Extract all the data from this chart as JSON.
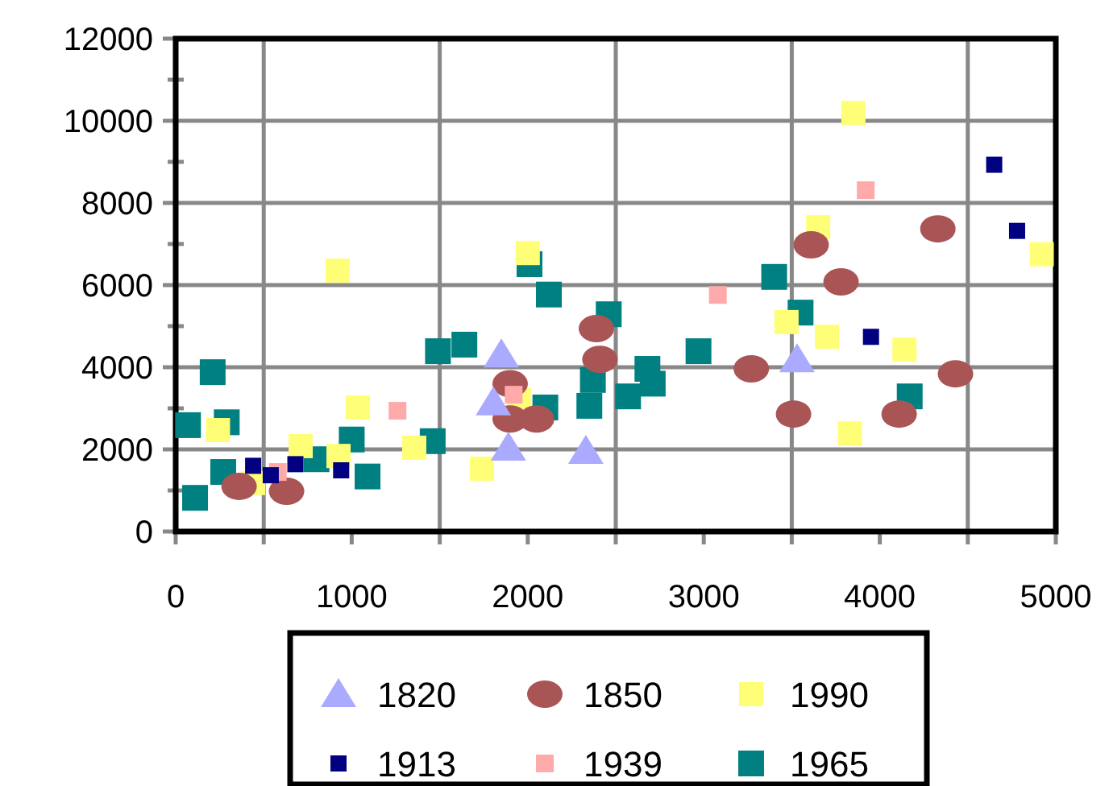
{
  "chart_data": {
    "type": "scatter",
    "xlim": [
      0,
      5000
    ],
    "ylim": [
      0,
      12000
    ],
    "xticks": [
      0,
      {
        "value": 500,
        "label": null
      },
      1000,
      {
        "value": 1500,
        "label": null
      },
      2000,
      {
        "value": 2500,
        "label": null
      },
      3000,
      {
        "value": 3500,
        "label": null
      },
      4000,
      {
        "value": 4500,
        "label": null
      },
      5000
    ],
    "yticks": [
      0,
      2000,
      4000,
      6000,
      8000,
      10000,
      12000
    ],
    "grid": true,
    "legend": "bottom",
    "series": [
      {
        "name": "1820",
        "color": "#aaaaff",
        "marker": "triangle",
        "x": [
          1850,
          1805,
          1890,
          2330,
          3530
        ],
        "values": [
          4310,
          3140,
          2040,
          1960,
          4190
        ]
      },
      {
        "name": "1850",
        "color": "#aa5555",
        "marker": "circle",
        "x": [
          360,
          630,
          1900,
          1900,
          2050,
          2390,
          2410,
          3610,
          3780,
          4330,
          3270,
          3510,
          4110,
          4430
        ],
        "values": [
          1100,
          980,
          3600,
          2740,
          2740,
          4940,
          4190,
          6980,
          6080,
          7370,
          3960,
          2860,
          2860,
          3840
        ]
      },
      {
        "name": "1990",
        "color": "#ffff77",
        "marker": "square",
        "x": [
          240,
          440,
          710,
          925,
          920,
          1035,
          1355,
          1740,
          2000,
          1950,
          3850,
          3650,
          3470,
          3700,
          4140,
          3830,
          4920
        ],
        "values": [
          2470,
          1180,
          2080,
          1840,
          6350,
          3020,
          2040,
          1530,
          6780,
          3210,
          10190,
          7410,
          5100,
          4740,
          4430,
          2390,
          6750
        ]
      },
      {
        "name": "1913",
        "color": "#000080",
        "marker": "square",
        "x": [
          440,
          540,
          680,
          940,
          4650,
          4780,
          3950
        ],
        "values": [
          1600,
          1370,
          1640,
          1490,
          8930,
          7320,
          4740
        ]
      },
      {
        "name": "1939",
        "color": "#ffaaaa",
        "marker": "square",
        "x": [
          580,
          1260,
          1920,
          3080,
          3920
        ],
        "values": [
          1450,
          2940,
          3330,
          5760,
          8310
        ]
      },
      {
        "name": "1965",
        "color": "#008080",
        "marker": "square",
        "x": [
          70,
          110,
          210,
          290,
          270,
          800,
          1000,
          1090,
          1460,
          1490,
          1640,
          2010,
          2120,
          2460,
          2370,
          2350,
          2100,
          2680,
          2710,
          2570,
          2970,
          3400,
          3550,
          4170
        ],
        "values": [
          2590,
          820,
          3880,
          2660,
          1450,
          1760,
          2240,
          1340,
          2200,
          4390,
          4550,
          6510,
          5770,
          5290,
          3690,
          3060,
          3020,
          3960,
          3600,
          3290,
          4390,
          6200,
          5330,
          3290
        ]
      }
    ]
  }
}
